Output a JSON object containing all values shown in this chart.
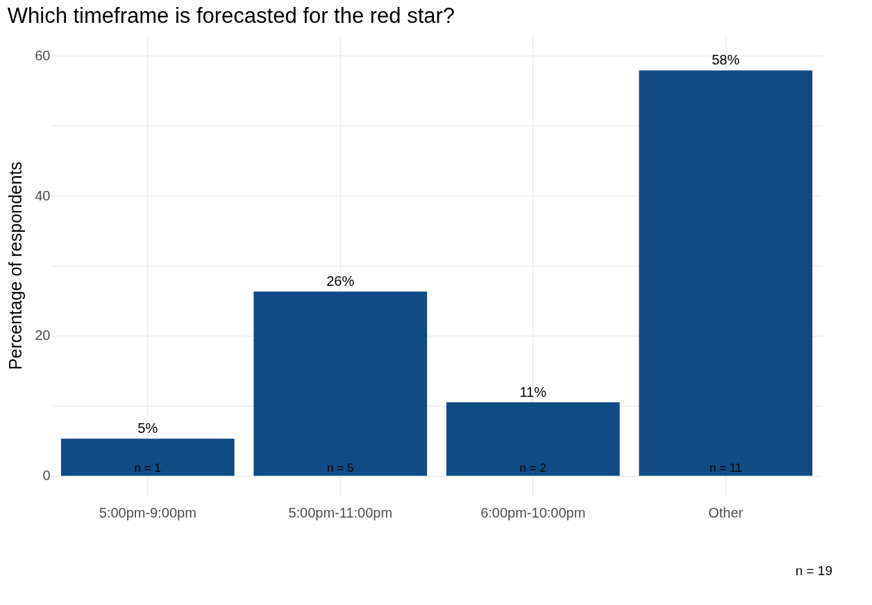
{
  "chart_data": {
    "type": "bar",
    "title": "Which timeframe is forecasted for the red star?",
    "ylabel": "Percentage of respondents",
    "categories": [
      "5:00pm-9:00pm",
      "5:00pm-11:00pm",
      "6:00pm-10:00pm",
      "Other"
    ],
    "values": [
      5.3,
      26.3,
      10.5,
      57.9
    ],
    "color": "#114b86",
    "value_labels": [
      "5%",
      "26%",
      "11%",
      "58%"
    ],
    "ylim": [
      -2.9,
      63
    ],
    "yticks": [
      0,
      {
        "value": 10,
        "label": null
      },
      20,
      {
        "value": 30,
        "label": null
      },
      40,
      {
        "value": 50,
        "label": null
      },
      60
    ],
    "grid": true,
    "annotations": [
      {
        "text": "n = 1",
        "x": "5:00pm-9:00pm",
        "y": 0
      },
      {
        "text": "n = 5",
        "x": "5:00pm-11:00pm",
        "y": 0
      },
      {
        "text": "n = 2",
        "x": "6:00pm-10:00pm",
        "y": 0
      },
      {
        "text": "n = 11",
        "x": "Other",
        "y": 0
      },
      "n = 19"
    ]
  }
}
